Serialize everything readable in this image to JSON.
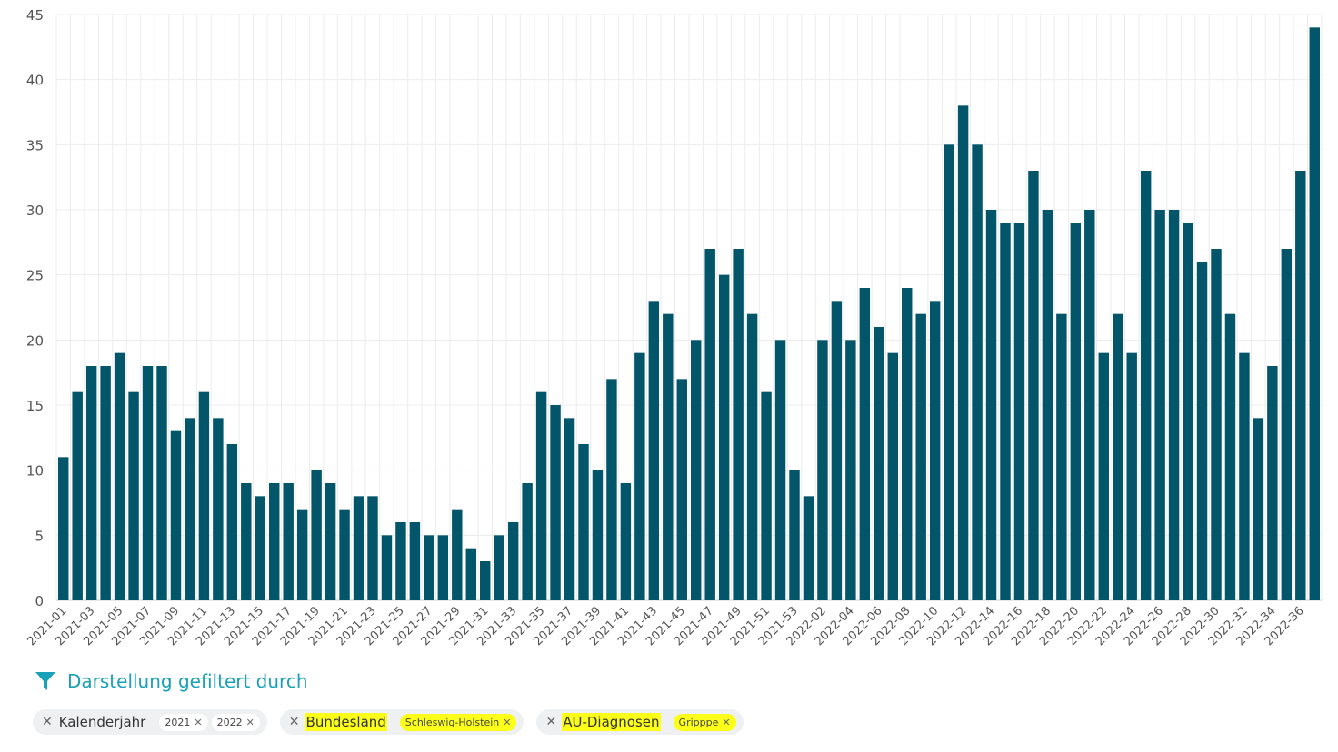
{
  "chart_data": {
    "type": "bar",
    "ylim": [
      0,
      45
    ],
    "yticks": [
      0,
      5,
      10,
      15,
      20,
      25,
      30,
      35,
      40,
      45
    ],
    "grid": true,
    "bar_color": "#03566a",
    "categories": [
      "2021-01",
      "2021-02",
      "2021-03",
      "2021-04",
      "2021-05",
      "2021-06",
      "2021-07",
      "2021-08",
      "2021-09",
      "2021-10",
      "2021-11",
      "2021-12",
      "2021-13",
      "2021-14",
      "2021-15",
      "2021-16",
      "2021-17",
      "2021-18",
      "2021-19",
      "2021-20",
      "2021-21",
      "2021-22",
      "2021-23",
      "2021-24",
      "2021-25",
      "2021-26",
      "2021-27",
      "2021-28",
      "2021-29",
      "2021-30",
      "2021-31",
      "2021-32",
      "2021-33",
      "2021-34",
      "2021-35",
      "2021-36",
      "2021-37",
      "2021-38",
      "2021-39",
      "2021-40",
      "2021-41",
      "2021-42",
      "2021-43",
      "2021-44",
      "2021-45",
      "2021-46",
      "2021-47",
      "2021-48",
      "2021-49",
      "2021-50",
      "2021-51",
      "2021-52",
      "2021-53",
      "2022-01",
      "2022-02",
      "2022-03",
      "2022-04",
      "2022-05",
      "2022-06",
      "2022-07",
      "2022-08",
      "2022-09",
      "2022-10",
      "2022-11",
      "2022-12",
      "2022-13",
      "2022-14",
      "2022-15",
      "2022-16",
      "2022-17",
      "2022-18",
      "2022-19",
      "2022-20",
      "2022-21",
      "2022-22",
      "2022-23",
      "2022-24",
      "2022-25",
      "2022-26",
      "2022-27",
      "2022-28",
      "2022-29",
      "2022-30",
      "2022-31",
      "2022-32",
      "2022-33",
      "2022-34",
      "2022-35",
      "2022-36",
      "2022-37"
    ],
    "values": [
      11,
      16,
      18,
      18,
      19,
      16,
      18,
      18,
      13,
      14,
      16,
      14,
      12,
      9,
      8,
      9,
      9,
      7,
      10,
      9,
      7,
      8,
      8,
      5,
      6,
      6,
      5,
      5,
      7,
      4,
      3,
      5,
      6,
      9,
      16,
      15,
      14,
      12,
      10,
      17,
      9,
      19,
      23,
      22,
      17,
      20,
      27,
      25,
      27,
      22,
      16,
      20,
      10,
      8,
      20,
      23,
      20,
      24,
      21,
      19,
      24,
      22,
      23,
      35,
      38,
      35,
      30,
      29,
      29,
      33,
      30,
      22,
      29,
      30,
      19,
      22,
      19,
      33,
      30,
      30,
      29,
      26,
      27,
      22,
      19,
      14,
      18,
      27,
      33,
      44
    ],
    "xtick_labels": [
      "2021-01",
      "2021-03",
      "2021-05",
      "2021-07",
      "2021-09",
      "2021-11",
      "2021-13",
      "2021-15",
      "2021-17",
      "2021-19",
      "2021-21",
      "2021-23",
      "2021-25",
      "2021-27",
      "2021-29",
      "2021-31",
      "2021-33",
      "2021-35",
      "2021-37",
      "2021-39",
      "2021-41",
      "2021-43",
      "2021-45",
      "2021-47",
      "2021-49",
      "2021-51",
      "2021-53",
      "2022-02",
      "2022-04",
      "2022-06",
      "2022-08",
      "2022-10",
      "2022-12",
      "2022-14",
      "2022-16",
      "2022-18",
      "2022-20",
      "2022-22",
      "2022-24",
      "2022-26",
      "2022-28",
      "2022-30",
      "2022-32",
      "2022-34",
      "2022-36"
    ]
  },
  "filter": {
    "title": "Darstellung gefiltert durch",
    "icon": "filter-icon",
    "accent": "#1aa0b8",
    "highlight": "#fbff1a",
    "chips": [
      {
        "label": "Kalenderjahr",
        "values": [
          "2021",
          "2022"
        ],
        "highlighted": false
      },
      {
        "label": "Bundesland",
        "values": [
          "Schleswig-Holstein"
        ],
        "highlighted": true
      },
      {
        "label": "AU-Diagnosen",
        "values": [
          "Gripppe"
        ],
        "highlighted": true
      }
    ]
  }
}
